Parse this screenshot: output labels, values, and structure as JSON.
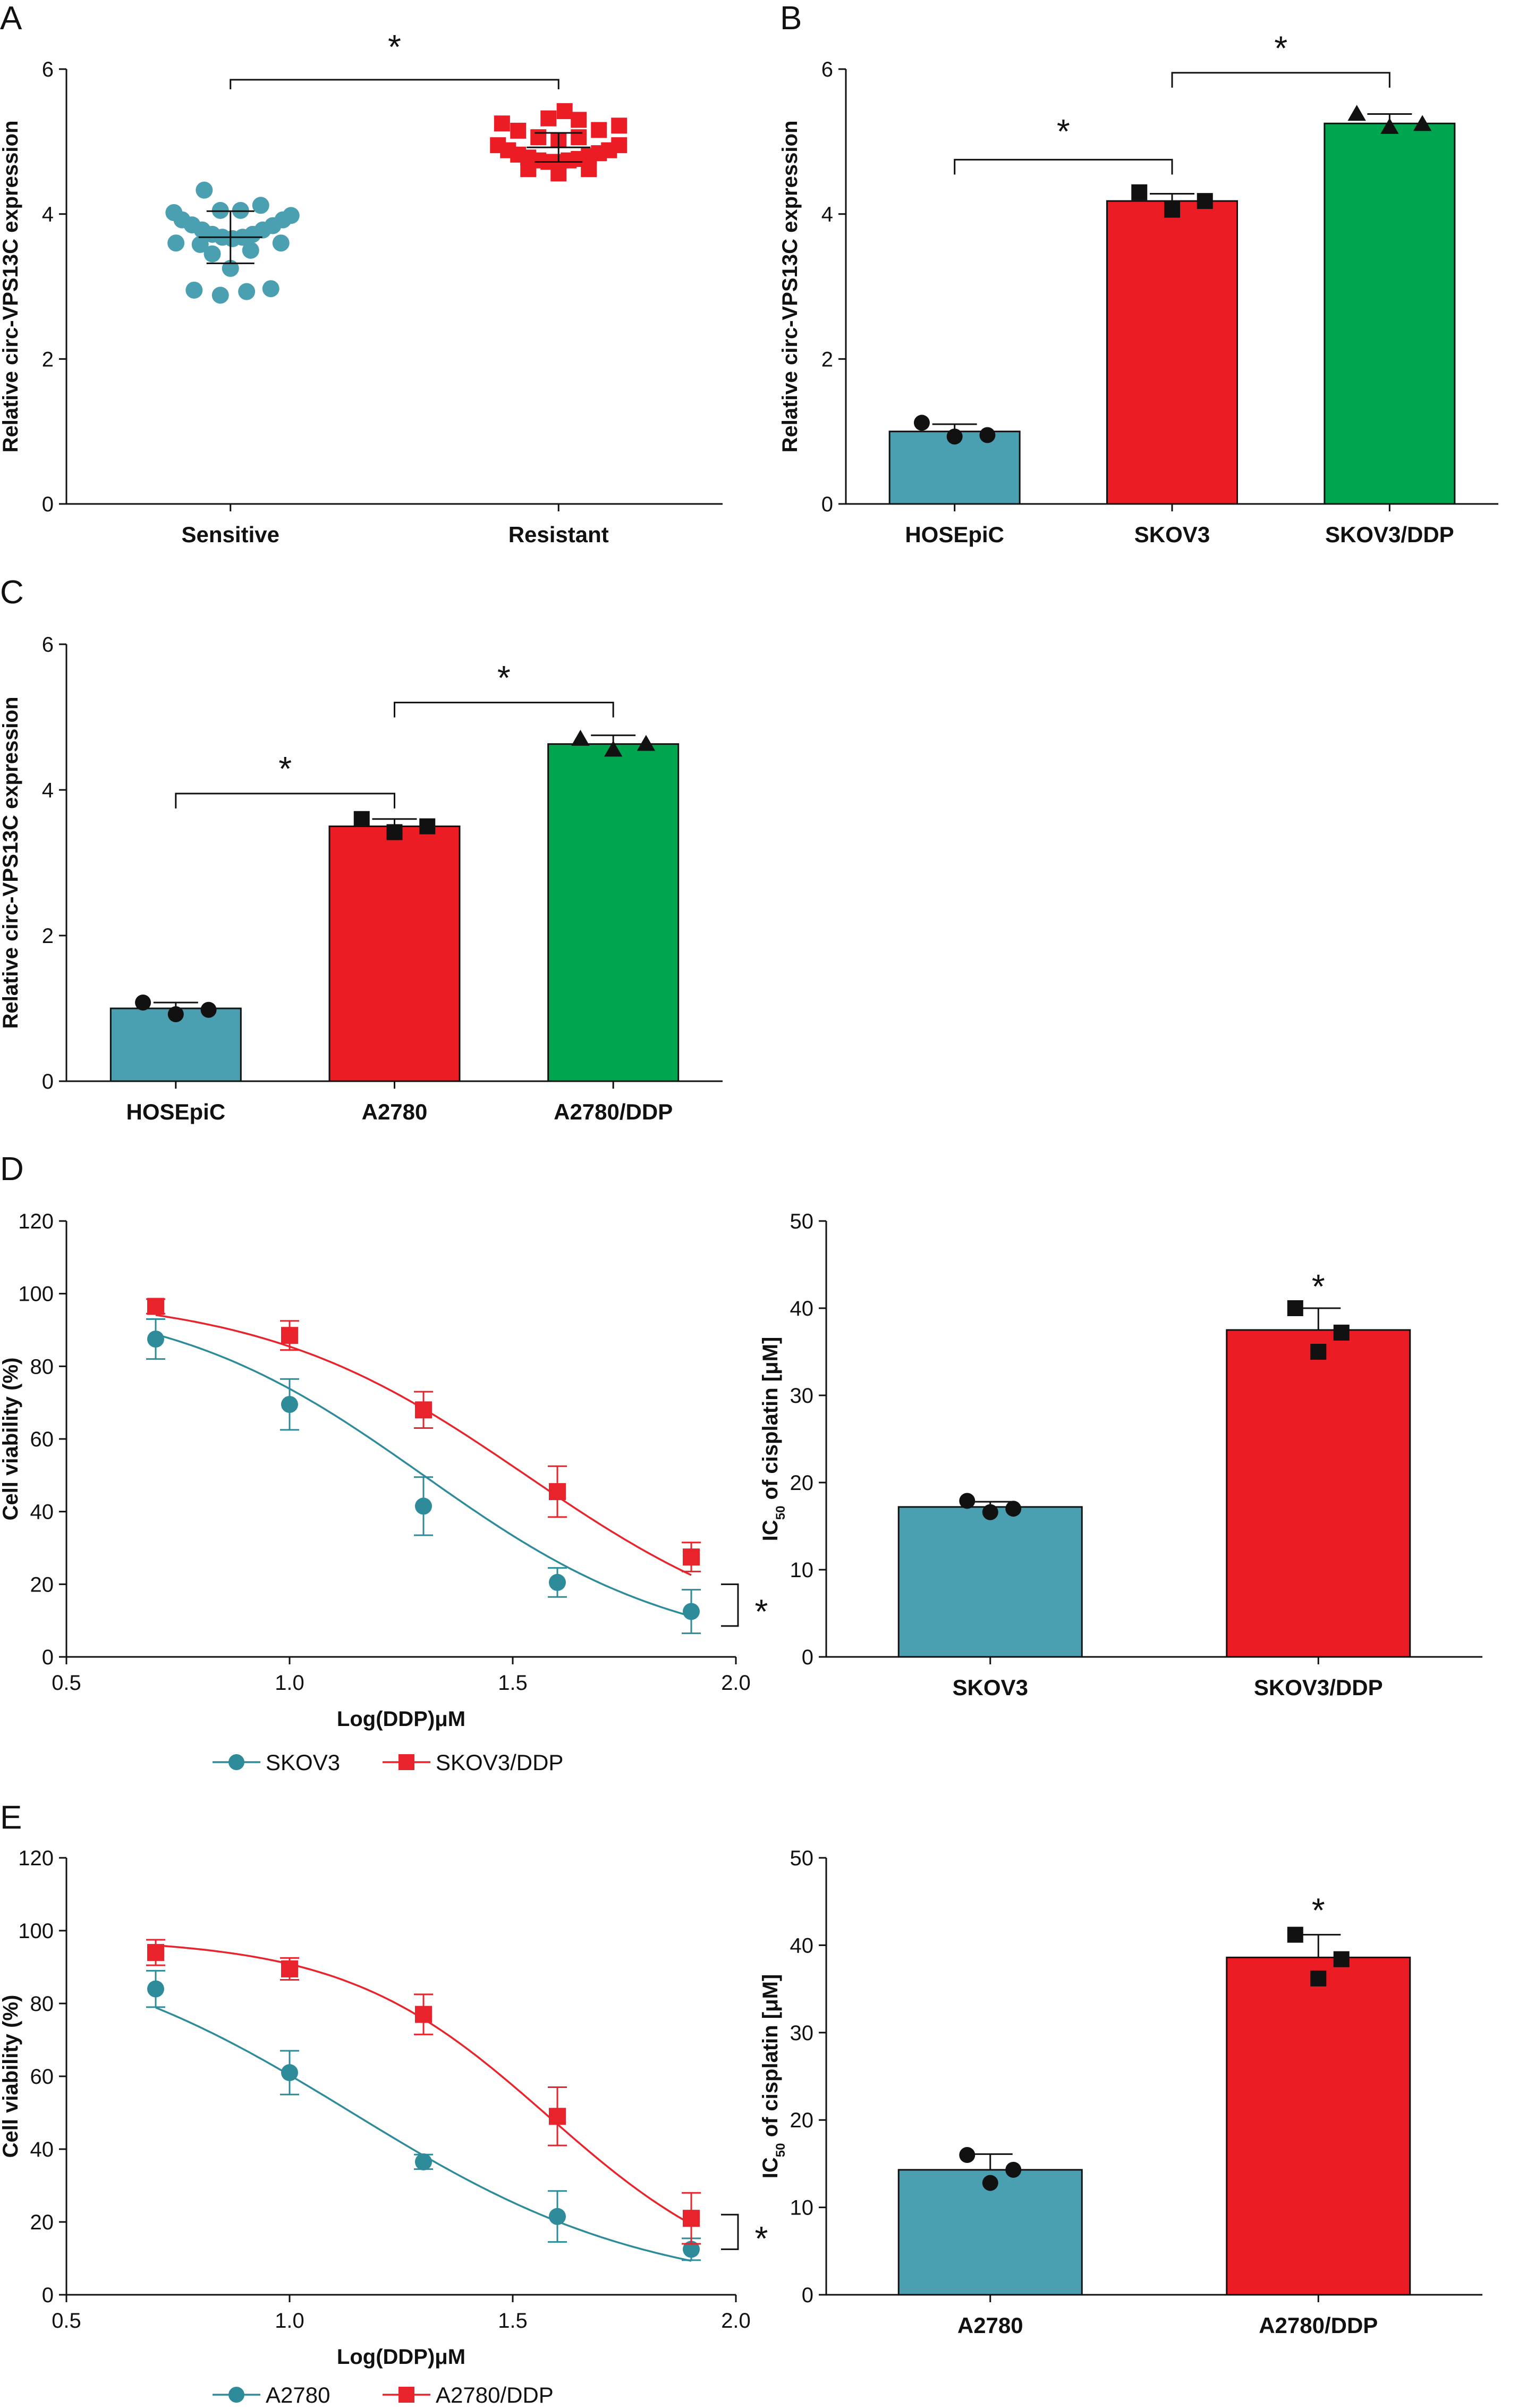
{
  "colors": {
    "teal": "#4aa0b0",
    "red": "#ec1c24",
    "green": "#00a64f",
    "black": "#111111",
    "teal_line": "#2e8b9a",
    "red_line": "#e8232b"
  },
  "significance_mark": "*",
  "panels": [
    {
      "letter": "A",
      "type": "scatter-dot",
      "ylabel": "Relative circ-VPS13C expression",
      "xlabel": "",
      "ylim": [
        0,
        6
      ],
      "yticks": [
        0,
        2,
        4,
        6
      ],
      "groups": [
        {
          "name": "Sensitive",
          "marker": "circle",
          "color": "#4aa0b0",
          "mean": 3.68,
          "sd": 0.36,
          "points": [
            {
              "x": -0.28,
              "y": 4.02
            },
            {
              "x": -0.24,
              "y": 3.92
            },
            {
              "x": -0.19,
              "y": 3.85
            },
            {
              "x": -0.14,
              "y": 3.78
            },
            {
              "x": -0.09,
              "y": 3.72
            },
            {
              "x": -0.04,
              "y": 3.68
            },
            {
              "x": 0.01,
              "y": 3.66
            },
            {
              "x": 0.06,
              "y": 3.68
            },
            {
              "x": 0.11,
              "y": 3.72
            },
            {
              "x": 0.16,
              "y": 3.78
            },
            {
              "x": 0.21,
              "y": 3.84
            },
            {
              "x": 0.26,
              "y": 3.92
            },
            {
              "x": 0.3,
              "y": 3.98
            },
            {
              "x": -0.27,
              "y": 3.6
            },
            {
              "x": -0.15,
              "y": 3.58
            },
            {
              "x": -0.09,
              "y": 3.45
            },
            {
              "x": 0.0,
              "y": 3.25
            },
            {
              "x": 0.1,
              "y": 3.5
            },
            {
              "x": 0.25,
              "y": 3.6
            },
            {
              "x": -0.13,
              "y": 4.33
            },
            {
              "x": -0.05,
              "y": 4.05
            },
            {
              "x": 0.05,
              "y": 4.05
            },
            {
              "x": 0.15,
              "y": 4.12
            },
            {
              "x": -0.18,
              "y": 2.95
            },
            {
              "x": -0.05,
              "y": 2.88
            },
            {
              "x": 0.08,
              "y": 2.93
            },
            {
              "x": 0.2,
              "y": 2.97
            }
          ]
        },
        {
          "name": "Resistant",
          "marker": "square",
          "color": "#ec1c24",
          "mean": 4.92,
          "sd": 0.2,
          "points": [
            {
              "x": -0.3,
              "y": 4.95
            },
            {
              "x": -0.25,
              "y": 4.88
            },
            {
              "x": -0.2,
              "y": 4.82
            },
            {
              "x": -0.15,
              "y": 4.78
            },
            {
              "x": -0.1,
              "y": 4.74
            },
            {
              "x": -0.05,
              "y": 4.72
            },
            {
              "x": 0.0,
              "y": 4.72
            },
            {
              "x": 0.05,
              "y": 4.74
            },
            {
              "x": 0.1,
              "y": 4.76
            },
            {
              "x": 0.15,
              "y": 4.8
            },
            {
              "x": 0.2,
              "y": 4.84
            },
            {
              "x": 0.25,
              "y": 4.88
            },
            {
              "x": 0.3,
              "y": 4.95
            },
            {
              "x": -0.28,
              "y": 5.25
            },
            {
              "x": -0.2,
              "y": 5.15
            },
            {
              "x": -0.1,
              "y": 5.06
            },
            {
              "x": 0.0,
              "y": 5.02
            },
            {
              "x": 0.1,
              "y": 5.06
            },
            {
              "x": 0.2,
              "y": 5.16
            },
            {
              "x": 0.3,
              "y": 5.22
            },
            {
              "x": -0.05,
              "y": 5.32
            },
            {
              "x": 0.03,
              "y": 5.42
            },
            {
              "x": 0.1,
              "y": 5.3
            },
            {
              "x": -0.15,
              "y": 4.62
            },
            {
              "x": 0.0,
              "y": 4.56
            },
            {
              "x": 0.15,
              "y": 4.62
            }
          ]
        }
      ],
      "significance": [
        {
          "from": 0,
          "to": 1,
          "bracket_y": 6.0,
          "label_y": 6.4
        }
      ]
    },
    {
      "letter": "B",
      "type": "bar",
      "ylabel": "Relative circ-VPS13C expression",
      "xlabel": "",
      "ylim": [
        0,
        6
      ],
      "yticks": [
        0,
        2,
        4,
        6
      ],
      "categories": [
        "HOSEpiC",
        "SKOV3",
        "SKOV3/DDP"
      ],
      "values": [
        1.0,
        4.18,
        5.25
      ],
      "errors": [
        0.1,
        0.1,
        0.13
      ],
      "bar_colors": [
        "#4aa0b0",
        "#ec1c24",
        "#00a64f"
      ],
      "markers": [
        "circle",
        "square",
        "triangle"
      ],
      "points": [
        [
          1.12,
          0.93,
          0.95
        ],
        [
          4.3,
          4.06,
          4.18
        ],
        [
          5.38,
          5.2,
          5.24
        ]
      ],
      "significance": [
        {
          "from": 0,
          "to": 1,
          "bracket_y": 4.75,
          "label_y": 5.2
        },
        {
          "from": 1,
          "to": 2,
          "bracket_y": 5.95,
          "label_y": 6.35
        }
      ]
    },
    {
      "letter": "C",
      "type": "bar",
      "ylabel": "Relative circ-VPS13C expression",
      "xlabel": "",
      "ylim": [
        0,
        6
      ],
      "yticks": [
        0,
        2,
        4,
        6
      ],
      "categories": [
        "HOSEpiC",
        "A2780",
        "A2780/DDP"
      ],
      "values": [
        1.0,
        3.5,
        4.63
      ],
      "errors": [
        0.08,
        0.1,
        0.12
      ],
      "bar_colors": [
        "#4aa0b0",
        "#ec1c24",
        "#00a64f"
      ],
      "markers": [
        "circle",
        "square",
        "triangle"
      ],
      "points": [
        [
          1.08,
          0.92,
          0.98
        ],
        [
          3.6,
          3.42,
          3.5
        ],
        [
          4.7,
          4.55,
          4.63
        ]
      ],
      "significance": [
        {
          "from": 0,
          "to": 1,
          "bracket_y": 3.95,
          "label_y": 4.35
        },
        {
          "from": 1,
          "to": 2,
          "bracket_y": 5.2,
          "label_y": 5.6
        }
      ]
    },
    {
      "letter": "D",
      "type": "line",
      "ylabel": "Cell viability (%)",
      "xlabel": "Log(DDP)μM",
      "xlim": [
        0.5,
        2.0
      ],
      "xticks": [
        "0.5",
        "1.0",
        "1.5",
        "2.0"
      ],
      "ylim": [
        0,
        120
      ],
      "yticks": [
        0,
        20,
        40,
        60,
        80,
        100,
        120
      ],
      "series": [
        {
          "name": "SKOV3",
          "marker": "circle",
          "color": "#2e8b9a",
          "x": [
            0.7,
            1.0,
            1.3,
            1.6,
            1.9
          ],
          "y": [
            87.5,
            69.5,
            41.5,
            20.5,
            12.5
          ],
          "err": [
            5.5,
            7.0,
            8.0,
            4.0,
            6.0
          ],
          "fit": {
            "top": 100,
            "bottom": 0,
            "logec50": 1.3,
            "hill": 1.5
          }
        },
        {
          "name": "SKOV3/DDP",
          "marker": "square",
          "color": "#e8232b",
          "x": [
            0.7,
            1.0,
            1.3,
            1.6,
            1.9
          ],
          "y": [
            96.5,
            88.5,
            68.0,
            45.5,
            27.5
          ],
          "err": [
            2.0,
            4.0,
            5.0,
            7.0,
            4.0
          ],
          "fit": {
            "top": 100,
            "bottom": 0,
            "logec50": 1.53,
            "hill": 1.45
          }
        }
      ],
      "significance": {
        "y1": 20.0,
        "y2": 8.5
      }
    },
    {
      "letter": "",
      "type": "bar",
      "ylabel": "IC50 of cisplatin [μM]",
      "xlabel": "",
      "ylim": [
        0,
        50
      ],
      "yticks": [
        0,
        10,
        20,
        30,
        40,
        50
      ],
      "categories": [
        "SKOV3",
        "SKOV3/DDP"
      ],
      "values": [
        17.2,
        37.5
      ],
      "errors": [
        0.6,
        2.5
      ],
      "bar_colors": [
        "#4aa0b0",
        "#ec1c24"
      ],
      "markers": [
        "circle",
        "square"
      ],
      "points": [
        [
          17.9,
          16.6,
          17.0
        ],
        [
          40.0,
          35.0,
          37.2
        ]
      ],
      "significance_single": [
        {
          "index": 1,
          "label_y": 43.0
        }
      ]
    },
    {
      "letter": "E",
      "type": "line",
      "ylabel": "Cell viability (%)",
      "xlabel": "Log(DDP)μM",
      "xlim": [
        0.5,
        2.0
      ],
      "xticks": [
        "0.5",
        "1.0",
        "1.5",
        "2.0"
      ],
      "ylim": [
        0,
        120
      ],
      "yticks": [
        0,
        20,
        40,
        60,
        80,
        100,
        120
      ],
      "series": [
        {
          "name": "A2780",
          "marker": "circle",
          "color": "#2e8b9a",
          "x": [
            0.7,
            1.0,
            1.3,
            1.6,
            1.9
          ],
          "y": [
            84.0,
            61.0,
            36.5,
            21.5,
            12.5
          ],
          "err": [
            5.0,
            6.0,
            2.0,
            7.0,
            3.0
          ],
          "fit": {
            "top": 100,
            "bottom": 0,
            "logec50": 1.14,
            "hill": 1.3
          }
        },
        {
          "name": "A2780/DDP",
          "marker": "square",
          "color": "#e8232b",
          "x": [
            0.7,
            1.0,
            1.3,
            1.6,
            1.9
          ],
          "y": [
            94.0,
            89.5,
            77.0,
            49.0,
            21.0
          ],
          "err": [
            3.5,
            3.0,
            5.5,
            8.0,
            7.0
          ],
          "fit": {
            "top": 98,
            "bottom": 0,
            "logec50": 1.58,
            "hill": 1.9
          }
        }
      ],
      "significance": {
        "y1": 22.0,
        "y2": 12.5
      }
    },
    {
      "letter": "",
      "type": "bar",
      "ylabel": "IC50 of cisplatin [μM]",
      "xlabel": "",
      "ylim": [
        0,
        50
      ],
      "yticks": [
        0,
        10,
        20,
        30,
        40,
        50
      ],
      "categories": [
        "A2780",
        "A2780/DDP"
      ],
      "values": [
        14.3,
        38.6
      ],
      "errors": [
        1.8,
        2.6
      ],
      "bar_colors": [
        "#4aa0b0",
        "#ec1c24"
      ],
      "markers": [
        "circle",
        "square"
      ],
      "points": [
        [
          16.0,
          12.8,
          14.3
        ],
        [
          41.2,
          36.2,
          38.4
        ]
      ],
      "significance_single": [
        {
          "index": 1,
          "label_y": 44.5
        }
      ]
    }
  ]
}
